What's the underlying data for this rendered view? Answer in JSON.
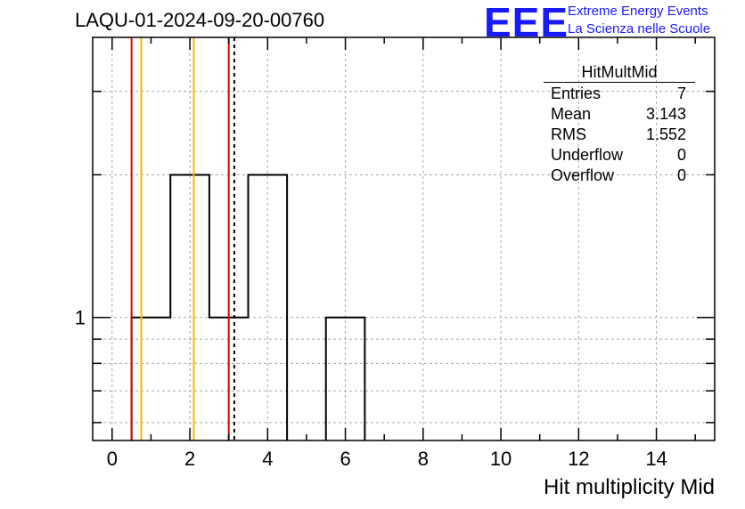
{
  "header": {
    "run_title": "LAQU-01-2024-09-20-00760"
  },
  "logo": {
    "mark": "EEE",
    "line1": "Extreme Energy Events",
    "line2": "La Scienza nelle Scuole",
    "color": "#1a1aff"
  },
  "stats": {
    "title": "HitMultMid",
    "rows": [
      {
        "label": "Entries",
        "value": "7"
      },
      {
        "label": "Mean",
        "value": "3.143"
      },
      {
        "label": "RMS",
        "value": "1.552"
      },
      {
        "label": "Underflow",
        "value": "0"
      },
      {
        "label": "Overflow",
        "value": "0"
      }
    ]
  },
  "chart_data": {
    "type": "histogram",
    "xlabel": "Hit multiplicity Mid",
    "ylabel": "",
    "xlim": [
      -0.5,
      15.5
    ],
    "ylim_log": [
      0.55,
      3.9
    ],
    "y_scale": "log",
    "grid": true,
    "x_ticks": [
      0,
      2,
      4,
      6,
      8,
      10,
      12,
      14
    ],
    "y_tick_labels": [
      {
        "value": 1,
        "label": "1"
      }
    ],
    "bins": [
      {
        "x0": 0.5,
        "x1": 1.5,
        "count": 1
      },
      {
        "x0": 1.5,
        "x1": 2.5,
        "count": 2
      },
      {
        "x0": 2.5,
        "x1": 3.5,
        "count": 1
      },
      {
        "x0": 3.5,
        "x1": 4.5,
        "count": 2
      },
      {
        "x0": 5.5,
        "x1": 6.5,
        "count": 1
      }
    ],
    "vertical_lines": [
      {
        "x": 0.5,
        "color": "#dd0000",
        "style": "solid"
      },
      {
        "x": 0.75,
        "color": "#f5b800",
        "style": "solid"
      },
      {
        "x": 2.1,
        "color": "#f5b800",
        "style": "solid"
      },
      {
        "x": 3.0,
        "color": "#dd0000",
        "style": "solid"
      },
      {
        "x": 3.143,
        "color": "#000000",
        "style": "dashed"
      }
    ]
  }
}
